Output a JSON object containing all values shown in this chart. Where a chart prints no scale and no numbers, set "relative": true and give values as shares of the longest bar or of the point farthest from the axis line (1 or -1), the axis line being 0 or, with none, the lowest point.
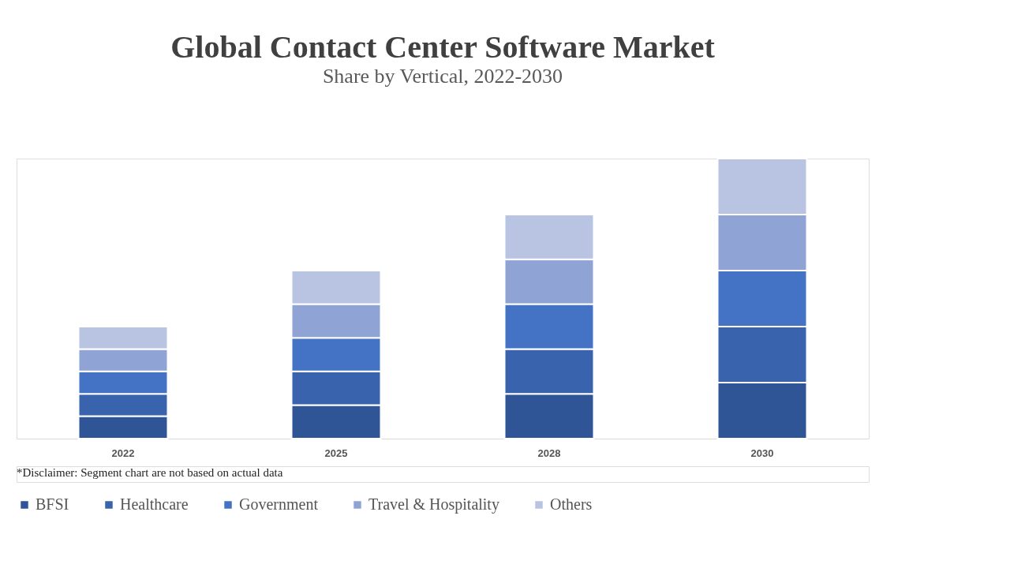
{
  "chart_data": {
    "type": "bar",
    "title": "Global Contact Center Software Market",
    "subtitle": "Share by Vertical, 2022-2030",
    "categories": [
      "2022",
      "2025",
      "2028",
      "2030"
    ],
    "stacked": true,
    "relative": true,
    "legend": "bottom",
    "grid": false,
    "series": [
      {
        "name": "BFSI",
        "color": "#2f5597",
        "values": [
          0.08,
          0.12,
          0.16,
          0.2
        ]
      },
      {
        "name": "Healthcare",
        "color": "#3a63ad",
        "values": [
          0.08,
          0.12,
          0.16,
          0.2
        ]
      },
      {
        "name": "Government",
        "color": "#4472c4",
        "values": [
          0.08,
          0.12,
          0.16,
          0.2
        ]
      },
      {
        "name": "Travel & Hospitality",
        "color": "#8fa4d4",
        "values": [
          0.08,
          0.12,
          0.16,
          0.2
        ]
      },
      {
        "name": "Others",
        "color": "#b9c4e3",
        "values": [
          0.08,
          0.12,
          0.16,
          0.2
        ]
      }
    ],
    "annotations": [
      "*Disclaimer:   Segment chart are not based on actual data"
    ]
  }
}
